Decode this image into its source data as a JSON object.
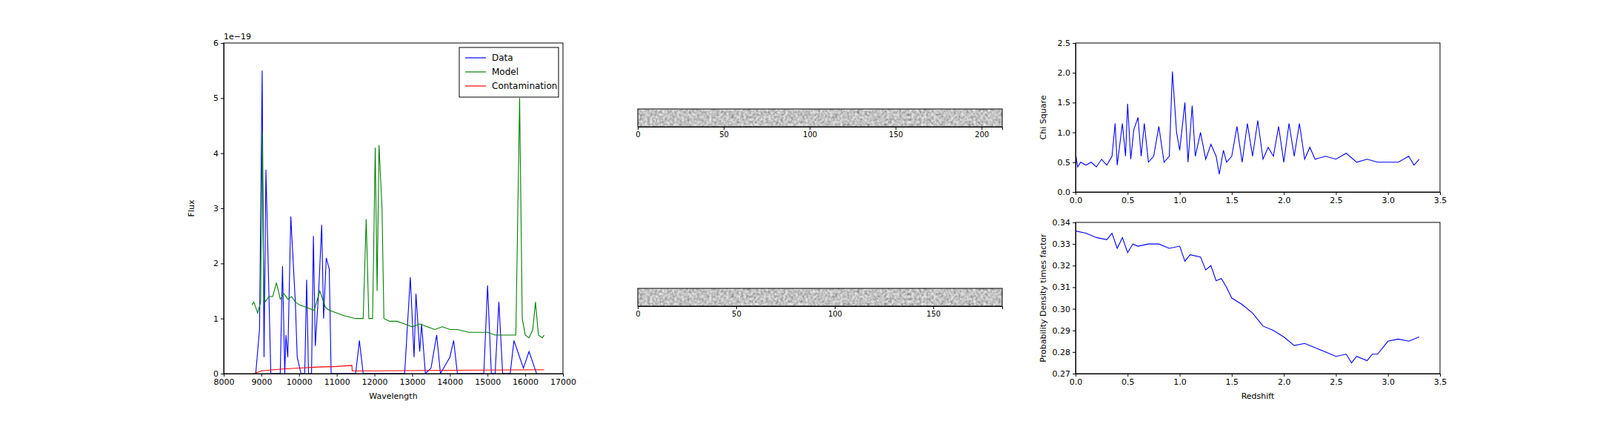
{
  "chart_data": [
    {
      "type": "line",
      "xlabel": "Wavelength",
      "ylabel": "Flux",
      "annotations": [
        {
          "text": "1e−19"
        }
      ],
      "xlim": [
        8000,
        17000
      ],
      "xticks": [
        8000,
        9000,
        10000,
        11000,
        12000,
        13000,
        14000,
        15000,
        16000,
        17000
      ],
      "ylim": [
        0,
        6e-19
      ],
      "yticks": [
        0,
        {
          "value": 1e-19,
          "label": "1"
        },
        {
          "value": 2e-19,
          "label": "2"
        },
        {
          "value": 3e-19,
          "label": "3"
        },
        {
          "value": 4e-19,
          "label": "4"
        },
        {
          "value": 5e-19,
          "label": "5"
        },
        {
          "value": 6e-19,
          "label": "6"
        }
      ],
      "legend": "upper right",
      "series": [
        {
          "name": "Data",
          "color": "#0000ff",
          "x": [
            8850,
            8950,
            9020,
            9070,
            9120,
            9250,
            9500,
            9560,
            9620,
            9650,
            9700,
            9780,
            9900,
            9950,
            10050,
            10150,
            10200,
            10250,
            10330,
            10380,
            10430,
            10520,
            10600,
            10650,
            10720,
            10800,
            10850,
            11500,
            11600,
            11700,
            12800,
            12950,
            13050,
            13100,
            13200,
            13250,
            13350,
            13500,
            13650,
            13750,
            14000,
            14100,
            14200,
            14900,
            15000,
            15100,
            15200,
            15300,
            15400,
            15600,
            15700,
            15850,
            15950,
            16100,
            16200,
            16300
          ],
          "values": [
            0,
            8e-20,
            5.5e-19,
            3e-20,
            3.7e-19,
            0,
            0,
            1.95e-19,
            0,
            7e-20,
            3e-20,
            2.85e-19,
            1.3e-19,
            3e-20,
            0,
            0,
            1.7e-19,
            0,
            0,
            2.5e-19,
            5e-20,
            1.5e-19,
            2.7e-19,
            1e-19,
            2.1e-19,
            1.9e-19,
            0,
            0,
            6e-20,
            0,
            0,
            1.75e-19,
            3e-20,
            1.45e-19,
            4e-20,
            9e-20,
            0,
            1e-20,
            7e-20,
            0,
            3e-20,
            6e-20,
            0,
            0,
            1.6e-19,
            0,
            0,
            1.3e-19,
            0,
            0,
            6e-20,
            3e-20,
            1e-20,
            4e-20,
            2e-20,
            0
          ]
        },
        {
          "name": "Model",
          "color": "#008000",
          "x": [
            8750,
            8800,
            8900,
            8980,
            9020,
            9060,
            9100,
            9200,
            9300,
            9400,
            9500,
            9600,
            9700,
            9800,
            9900,
            10000,
            10200,
            10400,
            10550,
            10700,
            10800,
            11000,
            11200,
            11500,
            11700,
            11780,
            11850,
            11950,
            12020,
            12070,
            12120,
            12200,
            12250,
            12400,
            12600,
            12800,
            13000,
            13200,
            13400,
            13600,
            13800,
            14000,
            14200,
            14500,
            14800,
            15000,
            15200,
            15500,
            15750,
            15850,
            15920,
            16000,
            16100,
            16200,
            16270,
            16350,
            16450,
            16500
          ],
          "values": [
            1.25e-19,
            1.3e-19,
            1.1e-19,
            1.3e-19,
            4.4e-19,
            1.5e-19,
            1.3e-19,
            1.4e-19,
            1.4e-19,
            1.65e-19,
            1.35e-19,
            1.45e-19,
            1.35e-19,
            1.4e-19,
            1.3e-19,
            1.25e-19,
            1.2e-19,
            1.15e-19,
            1.5e-19,
            1.2e-19,
            1.15e-19,
            1.1e-19,
            1.05e-19,
            1e-19,
            1e-19,
            2.8e-19,
            1e-19,
            1e-19,
            4.1e-19,
            1.5e-19,
            4.15e-19,
            3e-19,
            1e-19,
            9.5e-20,
            9.5e-20,
            9e-20,
            8.5e-20,
            9e-20,
            8.5e-20,
            8e-20,
            8.5e-20,
            8e-20,
            8e-20,
            7.5e-20,
            7.5e-20,
            7.5e-20,
            7e-20,
            7e-20,
            7e-20,
            5e-19,
            1e-19,
            7e-20,
            6.5e-20,
            8e-20,
            1.3e-19,
            7e-20,
            6.5e-20,
            7e-20
          ]
        },
        {
          "name": "Contamination",
          "color": "#ff0000",
          "x": [
            8800,
            9000,
            9500,
            10000,
            10500,
            11000,
            11400,
            11410,
            12000,
            14000,
            16500
          ],
          "values": [
            0,
            5e-21,
            8e-21,
            1e-20,
            1.2e-20,
            1.3e-20,
            1.5e-20,
            5e-21,
            5e-21,
            6e-21,
            7e-21
          ]
        }
      ]
    },
    {
      "type": "image",
      "xlim": [
        0,
        212
      ],
      "xticks": [
        0,
        50,
        100,
        150,
        200
      ]
    },
    {
      "type": "image",
      "xlim": [
        0,
        185
      ],
      "xticks": [
        0,
        50,
        100,
        150
      ]
    },
    {
      "type": "line",
      "ylabel": "Chi Square",
      "color": "#0000ff",
      "xlim": [
        0,
        3.5
      ],
      "xticks": [
        {
          "value": 0,
          "label": "0.0"
        },
        0.5,
        {
          "value": 1,
          "label": "1.0"
        },
        1.5,
        {
          "value": 2,
          "label": "2.0"
        },
        2.5,
        {
          "value": 3,
          "label": "3.0"
        },
        3.5
      ],
      "ylim": [
        0,
        2.5
      ],
      "yticks": [
        {
          "value": 0,
          "label": "0.0"
        },
        0.5,
        {
          "value": 1,
          "label": "1.0"
        },
        1.5,
        {
          "value": 2,
          "label": "2.0"
        },
        2.5
      ],
      "x": [
        0,
        0.02,
        0.05,
        0.1,
        0.15,
        0.2,
        0.25,
        0.3,
        0.35,
        0.38,
        0.4,
        0.45,
        0.48,
        0.5,
        0.53,
        0.56,
        0.6,
        0.63,
        0.66,
        0.7,
        0.75,
        0.8,
        0.85,
        0.9,
        0.93,
        0.97,
        1.0,
        1.05,
        1.08,
        1.12,
        1.15,
        1.2,
        1.25,
        1.3,
        1.35,
        1.38,
        1.42,
        1.45,
        1.5,
        1.55,
        1.6,
        1.65,
        1.7,
        1.75,
        1.8,
        1.85,
        1.9,
        1.95,
        2.0,
        2.05,
        2.1,
        2.15,
        2.2,
        2.25,
        2.3,
        2.4,
        2.5,
        2.6,
        2.7,
        2.8,
        2.9,
        3.0,
        3.1,
        3.2,
        3.25,
        3.3
      ],
      "values": [
        0.65,
        0.42,
        0.5,
        0.45,
        0.5,
        0.42,
        0.55,
        0.45,
        0.6,
        1.15,
        0.45,
        1.15,
        0.6,
        1.48,
        0.55,
        1.05,
        1.25,
        0.6,
        1.15,
        0.5,
        0.6,
        1.1,
        0.5,
        0.6,
        2.02,
        1.0,
        0.7,
        1.5,
        0.5,
        1.45,
        0.6,
        1.0,
        0.55,
        0.8,
        0.6,
        0.3,
        0.7,
        0.5,
        0.6,
        1.1,
        0.5,
        1.15,
        0.6,
        1.2,
        0.55,
        0.75,
        0.6,
        1.1,
        0.5,
        1.15,
        0.6,
        1.15,
        0.55,
        0.75,
        0.55,
        0.6,
        0.55,
        0.65,
        0.5,
        0.55,
        0.5,
        0.5,
        0.5,
        0.6,
        0.45,
        0.55
      ]
    },
    {
      "type": "line",
      "xlabel": "Redshift",
      "ylabel": "Probability Density times factor",
      "color": "#0000ff",
      "xlim": [
        0,
        3.5
      ],
      "xticks": [
        {
          "value": 0,
          "label": "0.0"
        },
        0.5,
        {
          "value": 1,
          "label": "1.0"
        },
        1.5,
        {
          "value": 2,
          "label": "2.0"
        },
        2.5,
        {
          "value": 3,
          "label": "3.0"
        },
        3.5
      ],
      "ylim": [
        0.27,
        0.34
      ],
      "yticks": [
        0.27,
        0.28,
        0.29,
        {
          "value": 0.3,
          "label": "0.30"
        },
        0.31,
        0.32,
        0.33,
        0.34
      ],
      "x": [
        0,
        0.1,
        0.2,
        0.3,
        0.35,
        0.4,
        0.45,
        0.5,
        0.55,
        0.6,
        0.7,
        0.8,
        0.9,
        1.0,
        1.05,
        1.1,
        1.2,
        1.25,
        1.3,
        1.35,
        1.4,
        1.45,
        1.5,
        1.6,
        1.7,
        1.8,
        1.9,
        2.0,
        2.1,
        2.2,
        2.3,
        2.4,
        2.5,
        2.6,
        2.65,
        2.7,
        2.8,
        2.85,
        2.9,
        3.0,
        3.1,
        3.2,
        3.3
      ],
      "values": [
        0.336,
        0.335,
        0.333,
        0.332,
        0.335,
        0.328,
        0.333,
        0.326,
        0.33,
        0.329,
        0.33,
        0.33,
        0.328,
        0.329,
        0.322,
        0.325,
        0.324,
        0.318,
        0.32,
        0.313,
        0.314,
        0.31,
        0.305,
        0.302,
        0.298,
        0.292,
        0.29,
        0.287,
        0.283,
        0.284,
        0.282,
        0.28,
        0.278,
        0.279,
        0.275,
        0.278,
        0.276,
        0.279,
        0.279,
        0.285,
        0.286,
        0.285,
        0.287
      ]
    }
  ]
}
